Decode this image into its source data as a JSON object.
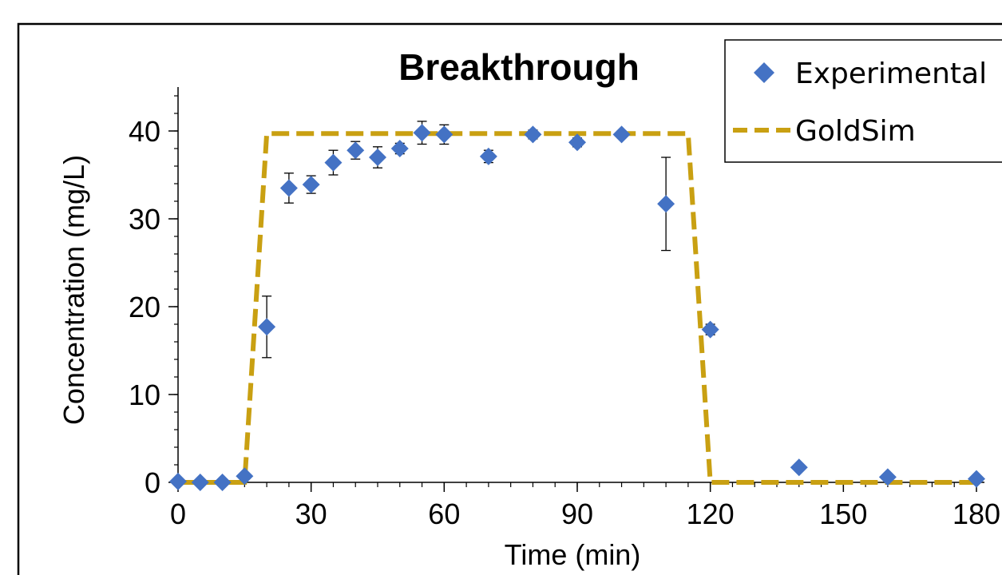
{
  "chart_data": {
    "type": "scatter",
    "title": "Breakthrough",
    "xlabel": "Time (min)",
    "ylabel": "Concentration (mg/L)",
    "xlim": [
      0,
      180
    ],
    "ylim": [
      0,
      45
    ],
    "x_ticks": [
      0,
      30,
      60,
      90,
      120,
      150,
      180
    ],
    "y_ticks": [
      0,
      10,
      20,
      30,
      40
    ],
    "x_tick_labels": [
      "0",
      "30",
      "60",
      "90",
      "120",
      "150",
      "180"
    ],
    "y_tick_labels": [
      "0",
      "10",
      "20",
      "30",
      "40"
    ],
    "grid": false,
    "legend_position": "top-right",
    "series": [
      {
        "name": "Experimental",
        "kind": "markers",
        "marker": "diamond",
        "color": "#4472C4",
        "points": [
          {
            "x": 0,
            "y": 0.1,
            "err": 0
          },
          {
            "x": 5,
            "y": 0.0,
            "err": 0
          },
          {
            "x": 10,
            "y": 0.0,
            "err": 0
          },
          {
            "x": 15,
            "y": 0.7,
            "err": 0
          },
          {
            "x": 20,
            "y": 17.7,
            "err": 3.5
          },
          {
            "x": 25,
            "y": 33.5,
            "err": 1.7
          },
          {
            "x": 30,
            "y": 33.9,
            "err": 1.0
          },
          {
            "x": 35,
            "y": 36.4,
            "err": 1.4
          },
          {
            "x": 40,
            "y": 37.8,
            "err": 1.0
          },
          {
            "x": 45,
            "y": 37.0,
            "err": 1.2
          },
          {
            "x": 50,
            "y": 38.0,
            "err": 0.6
          },
          {
            "x": 55,
            "y": 39.8,
            "err": 1.3
          },
          {
            "x": 60,
            "y": 39.6,
            "err": 1.1
          },
          {
            "x": 70,
            "y": 37.1,
            "err": 0.7
          },
          {
            "x": 80,
            "y": 39.6,
            "err": 0.5
          },
          {
            "x": 90,
            "y": 38.7,
            "err": 0.5
          },
          {
            "x": 100,
            "y": 39.6,
            "err": 0.4
          },
          {
            "x": 110,
            "y": 31.7,
            "err": 5.3
          },
          {
            "x": 120,
            "y": 17.4,
            "err": 0.6
          },
          {
            "x": 140,
            "y": 1.7,
            "err": 0
          },
          {
            "x": 160,
            "y": 0.6,
            "err": 0
          },
          {
            "x": 180,
            "y": 0.4,
            "err": 0
          }
        ]
      },
      {
        "name": "GoldSim",
        "kind": "line",
        "style": "dashed",
        "color": "#C9A012",
        "x": [
          0,
          15,
          20,
          115,
          120,
          180
        ],
        "y": [
          0,
          0,
          39.7,
          39.7,
          0,
          0
        ]
      }
    ]
  }
}
